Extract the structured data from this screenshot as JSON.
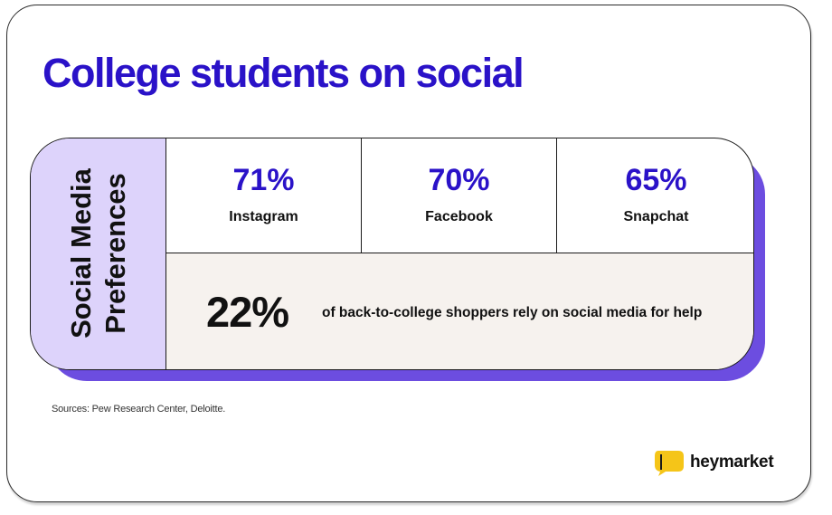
{
  "title": "College students on social",
  "side_label": {
    "line1": "Social Media",
    "line2": "Preferences"
  },
  "stats": [
    {
      "percent": "71%",
      "name": "Instagram"
    },
    {
      "percent": "70%",
      "name": "Facebook"
    },
    {
      "percent": "65%",
      "name": "Snapchat"
    }
  ],
  "highlight": {
    "percent": "22%",
    "text": "of back-to-college shoppers rely on social media for help"
  },
  "sources": "Sources: Pew Research Center, Deloitte.",
  "brand": {
    "name": "heymarket",
    "icon": "heymarket-logo-icon"
  },
  "colors": {
    "title": "#2a12c8",
    "accent_purple": "#6c4de0",
    "label_bg": "#ddd3fb",
    "highlight_bg": "#f6f2ee",
    "logo_yellow": "#f5c518"
  }
}
